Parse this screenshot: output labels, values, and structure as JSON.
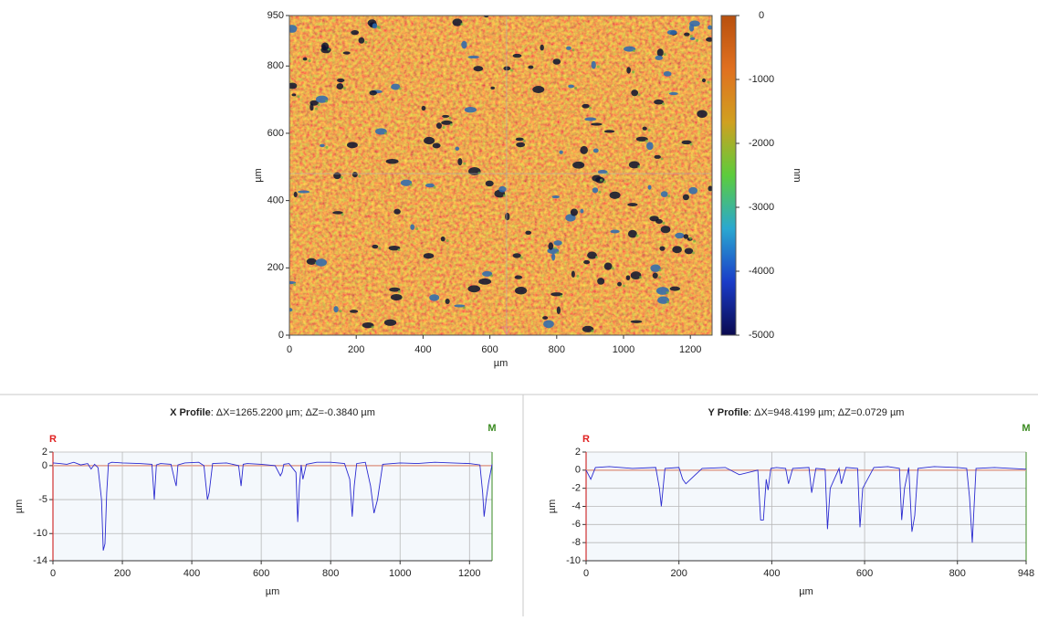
{
  "chart_data": [
    {
      "type": "heatmap",
      "xlabel": "µm",
      "ylabel": "µm",
      "xlim": [
        0,
        1265
      ],
      "xticks": [
        0,
        200,
        400,
        600,
        800,
        1000,
        1200
      ],
      "ylim": [
        0,
        950
      ],
      "yticks": [
        0,
        200,
        400,
        600,
        800,
        950
      ],
      "crosshair": {
        "x": 650,
        "y": 480
      },
      "colorbar": {
        "label": "nm",
        "range": [
          -5000,
          0
        ],
        "ticks": [
          0,
          -1000,
          -2000,
          -3000,
          -4000,
          -5000
        ],
        "colors": [
          "#0a0a50",
          "#1a3cc8",
          "#2aa8d0",
          "#5ccc3c",
          "#d0a020",
          "#e07020",
          "#b8500e"
        ]
      }
    },
    {
      "type": "line",
      "title": "X Profile",
      "title_detail": ": ΔX=1265.2200 µm; ΔZ=-0.3840 µm",
      "marker_left": "R",
      "marker_right": "M",
      "xlabel": "µm",
      "ylabel": "µm",
      "xlim": [
        0,
        1265
      ],
      "xticks": [
        0,
        200,
        400,
        600,
        800,
        1000,
        1200
      ],
      "ylim": [
        -14,
        2
      ],
      "yticks": [
        2,
        0,
        -5,
        -10,
        -14
      ],
      "grid": true,
      "series": [
        {
          "color": "#2a2ad0",
          "x": [
            0,
            20,
            40,
            60,
            80,
            100,
            110,
            120,
            130,
            140,
            145,
            150,
            155,
            160,
            170,
            200,
            250,
            285,
            292,
            298,
            310,
            340,
            350,
            355,
            360,
            380,
            420,
            435,
            445,
            450,
            460,
            500,
            535,
            542,
            548,
            560,
            600,
            640,
            655,
            660,
            665,
            680,
            700,
            705,
            710,
            715,
            720,
            730,
            760,
            800,
            840,
            855,
            862,
            868,
            875,
            900,
            915,
            925,
            935,
            950,
            1000,
            1050,
            1100,
            1150,
            1200,
            1230,
            1238,
            1242,
            1248,
            1255,
            1265
          ],
          "values": [
            0.4,
            0.3,
            0.2,
            0.5,
            0.1,
            0.3,
            -0.5,
            0.2,
            -0.3,
            -5,
            -12.5,
            -11.5,
            -4,
            0.3,
            0.5,
            0.4,
            0.3,
            0.2,
            -5,
            0.1,
            0.3,
            0.2,
            -2,
            -3,
            0.1,
            0.4,
            0.5,
            0,
            -5,
            -4,
            0.3,
            0.4,
            0,
            -3,
            0.2,
            0.3,
            0.2,
            0,
            -1.5,
            -1,
            0.2,
            0.3,
            -1,
            -8.3,
            -3,
            0.1,
            -2,
            0.2,
            0.5,
            0.5,
            0.3,
            -2,
            -7.5,
            -3,
            0.3,
            0.5,
            -3,
            -7,
            -5,
            0.2,
            0.4,
            0.3,
            0.5,
            0.4,
            0.3,
            0.1,
            -4,
            -7.5,
            -5,
            -2.5,
            0.2
          ]
        }
      ]
    },
    {
      "type": "line",
      "title": "Y Profile",
      "title_detail": ": ΔX=948.4199 µm; ΔZ=0.0729 µm",
      "marker_left": "R",
      "marker_right": "M",
      "xlabel": "µm",
      "ylabel": "µm",
      "xlim": [
        0,
        948
      ],
      "xticks": [
        0,
        200,
        400,
        600,
        800,
        948
      ],
      "ylim": [
        -10,
        2
      ],
      "yticks": [
        2,
        0,
        -2,
        -4,
        -6,
        -8,
        -10
      ],
      "grid": true,
      "series": [
        {
          "color": "#2a2ad0",
          "x": [
            0,
            10,
            20,
            50,
            100,
            150,
            158,
            162,
            170,
            200,
            208,
            215,
            250,
            300,
            330,
            370,
            376,
            382,
            388,
            392,
            398,
            410,
            430,
            436,
            445,
            480,
            486,
            495,
            515,
            520,
            526,
            545,
            550,
            560,
            585,
            590,
            596,
            620,
            650,
            675,
            680,
            686,
            695,
            702,
            708,
            715,
            750,
            800,
            820,
            826,
            832,
            840,
            880,
            948
          ],
          "values": [
            0,
            -1,
            0.3,
            0.4,
            0.2,
            0.3,
            -2,
            -4,
            0.2,
            0.3,
            -1,
            -1.5,
            0.2,
            0.3,
            -0.5,
            0,
            -5.5,
            -5.5,
            -1,
            -2.2,
            0.2,
            0.3,
            0.2,
            -1.5,
            0.2,
            0.3,
            -2.5,
            0.2,
            0.1,
            -6.5,
            -2,
            0.2,
            -1.5,
            0.3,
            0.2,
            -6.3,
            -2,
            0.3,
            0.4,
            0.2,
            -5.5,
            -2,
            0.3,
            -6.8,
            -5,
            0.2,
            0.4,
            0.3,
            0.2,
            -3,
            -8,
            0.2,
            0.3,
            0.1
          ]
        }
      ]
    }
  ]
}
